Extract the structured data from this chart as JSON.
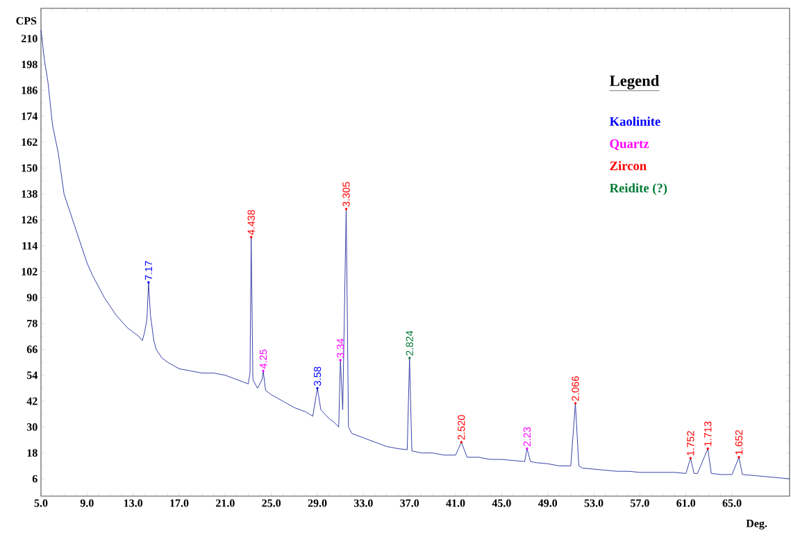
{
  "chart_data": {
    "type": "line",
    "xlabel": "Deg.",
    "ylabel": "CPS",
    "legend_title": "Legend",
    "legend": "top right",
    "xlim": [
      5,
      70
    ],
    "ylim": [
      -2,
      224
    ],
    "xticks": [
      {
        "value": 5,
        "label": "5.0"
      },
      {
        "value": 9,
        "label": "9.0"
      },
      {
        "value": 13,
        "label": "13.0"
      },
      {
        "value": 17,
        "label": "17.0"
      },
      {
        "value": 21,
        "label": "21.0"
      },
      {
        "value": 25,
        "label": "25.0"
      },
      {
        "value": 29,
        "label": "29.0"
      },
      {
        "value": 33,
        "label": "33.0"
      },
      {
        "value": 37,
        "label": "37.0"
      },
      {
        "value": 41,
        "label": "41.0"
      },
      {
        "value": 45,
        "label": "45.0"
      },
      {
        "value": 49,
        "label": "49.0"
      },
      {
        "value": 53,
        "label": "53.0"
      },
      {
        "value": 57,
        "label": "57.0"
      },
      {
        "value": 61,
        "label": "61.0"
      },
      {
        "value": 65,
        "label": "65.0"
      }
    ],
    "yticks": [
      6,
      18,
      30,
      42,
      54,
      66,
      78,
      90,
      102,
      114,
      126,
      138,
      150,
      162,
      174,
      186,
      198,
      210
    ],
    "series": [
      {
        "color": "#2b35a0",
        "x": [
          5.0,
          5.3,
          5.6,
          6.0,
          6.5,
          7.0,
          7.5,
          8.0,
          8.5,
          9.0,
          9.5,
          10.0,
          10.5,
          11.0,
          11.5,
          12.0,
          12.5,
          13.0,
          13.5,
          13.8,
          14.0,
          14.2,
          14.34,
          14.5,
          14.8,
          15.0,
          15.5,
          16.0,
          17.0,
          18.0,
          19.0,
          20.0,
          21.0,
          22.0,
          23.0,
          23.15,
          23.25,
          23.4,
          23.8,
          24.2,
          24.3,
          24.5,
          25.0,
          26.0,
          27.0,
          28.0,
          28.6,
          29.0,
          29.3,
          30.0,
          30.5,
          30.85,
          31.0,
          31.2,
          31.5,
          31.7,
          32.0,
          33.0,
          34.0,
          35.0,
          36.0,
          36.8,
          37.0,
          37.2,
          38.0,
          39.0,
          40.0,
          41.0,
          41.5,
          42.0,
          43.0,
          44.0,
          45.0,
          46.0,
          47.0,
          47.2,
          47.5,
          48.0,
          49.0,
          50.0,
          51.0,
          51.4,
          51.7,
          52.0,
          53.0,
          54.0,
          55.0,
          56.0,
          57.0,
          58.0,
          59.0,
          60.0,
          61.0,
          61.4,
          61.7,
          62.0,
          62.9,
          63.2,
          64.0,
          65.0,
          65.6,
          65.9,
          67.0,
          68.0,
          69.0,
          70.0
        ],
        "values": [
          214,
          200,
          190,
          170,
          157,
          138,
          130,
          122,
          114,
          106,
          100,
          95,
          90,
          86,
          82,
          79,
          76,
          74,
          72,
          70,
          74,
          80,
          97,
          82,
          70,
          66,
          62,
          60,
          57,
          56,
          55,
          55,
          54,
          52,
          50,
          55,
          118,
          52,
          48,
          52,
          56,
          47,
          45,
          42,
          39,
          37,
          35,
          48,
          38,
          34,
          32,
          30,
          61,
          38,
          131,
          30,
          27,
          25,
          23,
          21,
          20,
          19.5,
          62,
          19,
          18,
          18,
          17,
          17,
          23,
          16,
          16,
          15,
          15,
          14.5,
          14,
          20,
          14,
          13.5,
          13,
          12,
          12,
          41,
          12,
          11,
          10.5,
          10,
          9.5,
          9.5,
          9,
          9,
          9,
          9,
          8.5,
          15.6,
          8.5,
          8.5,
          20,
          8.5,
          8,
          8,
          16,
          8,
          7.5,
          7,
          6.5,
          6
        ]
      },
      {
        "type": "scatter",
        "marker": "circle",
        "name": "Kaolinite",
        "color": "#0000ff",
        "x": [
          14.34,
          29.0
        ],
        "values": [
          97,
          48
        ]
      },
      {
        "type": "scatter",
        "marker": "circle",
        "name": "Quartz",
        "color": "#ff00ff",
        "x": [
          24.3,
          31.0,
          47.2
        ],
        "values": [
          56,
          61,
          20
        ]
      },
      {
        "type": "scatter",
        "marker": "circle",
        "name": "Zircon",
        "color": "#ff0000",
        "x": [
          23.25,
          31.5,
          41.5,
          51.4,
          61.4,
          62.9,
          65.6
        ],
        "values": [
          118,
          131,
          23,
          41,
          15.6,
          20,
          16
        ]
      },
      {
        "type": "scatter",
        "marker": "circle",
        "name": "Reidite (?)",
        "color": "#007a33",
        "x": [
          37.0
        ],
        "values": [
          62
        ]
      }
    ],
    "annotations": [
      {
        "text": "7.17",
        "x": 14.34,
        "y": 97
      },
      {
        "text": "4.438",
        "x": 23.25,
        "y": 118
      },
      {
        "text": "4.25",
        "x": 24.3,
        "y": 56
      },
      {
        "text": "3.58",
        "x": 29.0,
        "y": 48
      },
      {
        "text": "3.34",
        "x": 31.0,
        "y": 61
      },
      {
        "text": "3.305",
        "x": 31.5,
        "y": 131
      },
      {
        "text": "2.824",
        "x": 37.0,
        "y": 62
      },
      {
        "text": "2.520",
        "x": 41.5,
        "y": 23
      },
      {
        "text": "2.23",
        "x": 47.2,
        "y": 20
      },
      {
        "text": "2.066",
        "x": 51.4,
        "y": 41
      },
      {
        "text": "1.752",
        "x": 61.4,
        "y": 15.6
      },
      {
        "text": "1.713",
        "x": 62.9,
        "y": 20
      },
      {
        "text": "1.652",
        "x": 65.6,
        "y": 16
      }
    ]
  }
}
